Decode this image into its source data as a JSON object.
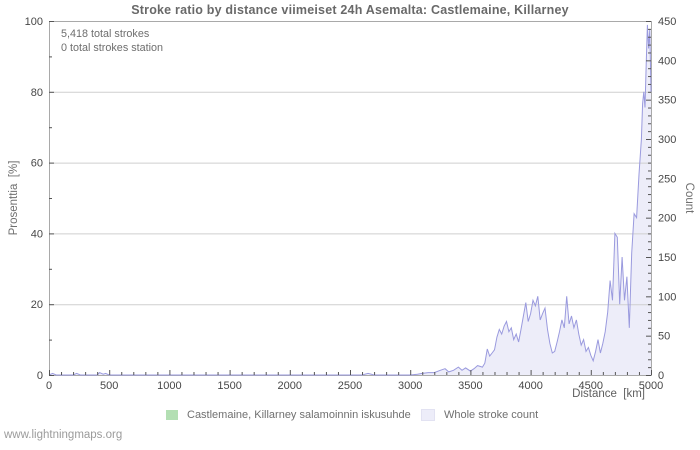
{
  "page": {
    "footer": "www.lightningmaps.org"
  },
  "chart_data": {
    "type": "area",
    "title": "Stroke ratio by distance viimeiset 24h Asemalta: Castlemaine, Killarney",
    "annotations": [
      "5,418 total strokes",
      "0 total strokes station"
    ],
    "xlabel": "Distance  [km]",
    "ylabel_left": "Prosenttia  [%]",
    "ylabel_right": "Count",
    "xlim": [
      0,
      5000
    ],
    "ylim_left": [
      0,
      100
    ],
    "ylim_right": [
      0,
      450
    ],
    "grid": "horizontal gridlines at left-axis 20/40/60/80, legend bottom, no vertical grid",
    "axes": {
      "x": {
        "min": 0,
        "max": 5000,
        "major_step": 500,
        "minor_step": 100,
        "major_ticks": [
          0,
          500,
          1000,
          1500,
          2000,
          2500,
          3000,
          3500,
          4000,
          4500,
          5000
        ]
      },
      "left": {
        "min": 0,
        "max": 100,
        "major_step": 20,
        "minor_step": 10,
        "major_ticks": [
          0,
          20,
          40,
          60,
          80,
          100
        ],
        "grid_at": [
          20,
          40,
          60,
          80
        ]
      },
      "right": {
        "min": 0,
        "max": 450,
        "major_step": 50,
        "minor_step": 10,
        "major_ticks": [
          0,
          50,
          100,
          150,
          200,
          250,
          300,
          350,
          400,
          450
        ]
      }
    },
    "colors": {
      "frame": "#a9a9a9",
      "grid": "#cfcfcf",
      "tick": "#555555",
      "area_line": "#9a9ade",
      "area_fill": "#ededf9",
      "ratio_green": "#b3dfb3"
    },
    "series": [
      {
        "name": "Castlemaine, Killarney salamoinnin iskusuhde",
        "axis": "left",
        "unit": "%",
        "color": "#b3dfb3",
        "points": []
      },
      {
        "name": "Whole stroke count",
        "axis": "right",
        "unit": "strokes",
        "color_line": "#9a9ade",
        "color_fill": "#ededf9",
        "points": [
          [
            0,
            0
          ],
          [
            30,
            2
          ],
          [
            60,
            0
          ],
          [
            200,
            0
          ],
          [
            230,
            2
          ],
          [
            260,
            0
          ],
          [
            400,
            0
          ],
          [
            420,
            3
          ],
          [
            450,
            1
          ],
          [
            470,
            2
          ],
          [
            500,
            0
          ],
          [
            1000,
            0
          ],
          [
            1500,
            0
          ],
          [
            2000,
            0
          ],
          [
            2500,
            0
          ],
          [
            2600,
            0
          ],
          [
            2650,
            2
          ],
          [
            2700,
            0
          ],
          [
            3000,
            0
          ],
          [
            3060,
            1
          ],
          [
            3100,
            2
          ],
          [
            3150,
            3
          ],
          [
            3200,
            3
          ],
          [
            3250,
            6
          ],
          [
            3290,
            8
          ],
          [
            3320,
            4
          ],
          [
            3360,
            6
          ],
          [
            3400,
            10
          ],
          [
            3430,
            6
          ],
          [
            3460,
            9
          ],
          [
            3500,
            5
          ],
          [
            3530,
            8
          ],
          [
            3560,
            12
          ],
          [
            3600,
            10
          ],
          [
            3620,
            15
          ],
          [
            3640,
            33
          ],
          [
            3660,
            24
          ],
          [
            3680,
            28
          ],
          [
            3700,
            32
          ],
          [
            3720,
            48
          ],
          [
            3740,
            58
          ],
          [
            3760,
            52
          ],
          [
            3780,
            62
          ],
          [
            3800,
            68
          ],
          [
            3820,
            55
          ],
          [
            3840,
            60
          ],
          [
            3860,
            45
          ],
          [
            3880,
            52
          ],
          [
            3900,
            42
          ],
          [
            3920,
            58
          ],
          [
            3940,
            75
          ],
          [
            3960,
            92
          ],
          [
            3980,
            68
          ],
          [
            4000,
            78
          ],
          [
            4020,
            95
          ],
          [
            4040,
            88
          ],
          [
            4060,
            100
          ],
          [
            4080,
            70
          ],
          [
            4100,
            78
          ],
          [
            4120,
            85
          ],
          [
            4140,
            58
          ],
          [
            4160,
            40
          ],
          [
            4180,
            28
          ],
          [
            4200,
            30
          ],
          [
            4220,
            42
          ],
          [
            4240,
            55
          ],
          [
            4260,
            70
          ],
          [
            4280,
            60
          ],
          [
            4300,
            100
          ],
          [
            4320,
            65
          ],
          [
            4340,
            75
          ],
          [
            4360,
            60
          ],
          [
            4380,
            70
          ],
          [
            4400,
            52
          ],
          [
            4420,
            38
          ],
          [
            4440,
            45
          ],
          [
            4460,
            30
          ],
          [
            4480,
            35
          ],
          [
            4500,
            25
          ],
          [
            4520,
            18
          ],
          [
            4540,
            30
          ],
          [
            4560,
            45
          ],
          [
            4580,
            28
          ],
          [
            4600,
            40
          ],
          [
            4620,
            55
          ],
          [
            4640,
            80
          ],
          [
            4660,
            120
          ],
          [
            4680,
            95
          ],
          [
            4700,
            180
          ],
          [
            4720,
            175
          ],
          [
            4740,
            90
          ],
          [
            4760,
            150
          ],
          [
            4780,
            95
          ],
          [
            4800,
            125
          ],
          [
            4820,
            60
          ],
          [
            4840,
            155
          ],
          [
            4860,
            205
          ],
          [
            4880,
            200
          ],
          [
            4900,
            255
          ],
          [
            4920,
            300
          ],
          [
            4930,
            345
          ],
          [
            4940,
            360
          ],
          [
            4950,
            340
          ],
          [
            4960,
            395
          ],
          [
            4970,
            445
          ],
          [
            4980,
            415
          ],
          [
            4990,
            440
          ],
          [
            5000,
            360
          ]
        ]
      }
    ],
    "legend_position": "bottom"
  }
}
